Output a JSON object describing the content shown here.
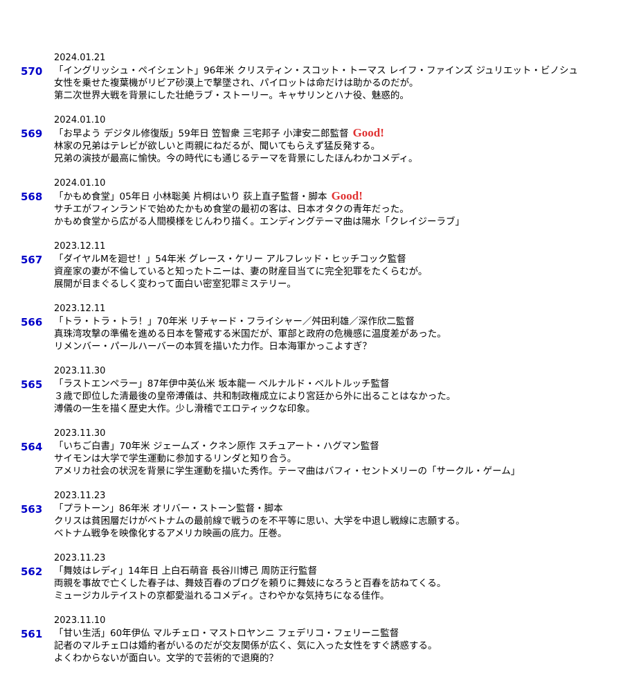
{
  "entries": [
    {
      "date": "2024.01.21",
      "number": "570",
      "title": "「イングリッシュ・ペイシェント」96年米 クリスティン・スコット・トーマス レイフ・ファインズ ジュリエット・ビノシュ",
      "lines": [
        "女性を乗せた複葉機がリビア砂漠上で撃墜され、パイロットは命だけは助かるのだが。",
        "第二次世界大戦を背景にした壮絶ラブ・ストーリー。キャサリンとハナ役、魅惑的。"
      ]
    },
    {
      "date": "2024.01.10",
      "number": "569",
      "title": "「お早よう デジタル修復版」59年日 笠智衆 三宅邦子 小津安二郎監督",
      "badge": "Good!",
      "lines": [
        "林家の兄弟はテレビが欲しいと両親にねだるが、聞いてもらえず猛反発する。",
        "兄弟の演技が最高に愉快。今の時代にも通じるテーマを背景にしたほんわかコメディ。"
      ]
    },
    {
      "date": "2024.01.10",
      "number": "568",
      "title": "「かもめ食堂」05年日 小林聡美 片桐はいり 荻上直子監督・脚本",
      "badge": "Good!",
      "lines": [
        "サチエがフィンランドで始めたかもめ食堂の最初の客は、日本オタクの青年だった。",
        "かもめ食堂から広がる人間模様をじんわり描く。エンディングテーマ曲は陽水「クレイジーラブ」"
      ]
    },
    {
      "date": "2023.12.11",
      "number": "567",
      "title": "「ダイヤルMを廻せ！」54年米 グレース・ケリー アルフレッド・ヒッチコック監督",
      "lines": [
        "資産家の妻が不倫していると知ったトニーは、妻の財産目当てに完全犯罪をたくらむが。",
        "展開が目まぐるしく変わって面白い密室犯罪ミステリー。"
      ]
    },
    {
      "date": "2023.12.11",
      "number": "566",
      "title": "「トラ・トラ・トラ！」70年米 リチャード・フライシャー／舛田利雄／深作欣二監督",
      "lines": [
        "真珠湾攻撃の準備を進める日本を警戒する米国だが、軍部と政府の危機感に温度差があった。",
        "リメンバー・パールハーバーの本質を描いた力作。日本海軍かっこよすぎ？"
      ]
    },
    {
      "date": "2023.11.30",
      "number": "565",
      "title": "「ラストエンペラー」87年伊中英仏米 坂本龍一 ベルナルド・ベルトルッチ監督",
      "lines": [
        "３歳で即位した清最後の皇帝溥儀は、共和制政権成立により宮廷から外に出ることはなかった。",
        "溥儀の一生を描く歴史大作。少し滑稽でエロティックな印象。"
      ]
    },
    {
      "date": "2023.11.30",
      "number": "564",
      "title": "「いちご白書」70年米 ジェームズ・クネン原作 スチュアート・ハグマン監督",
      "lines": [
        "サイモンは大学で学生運動に参加するリンダと知り合う。",
        "アメリカ社会の状況を背景に学生運動を描いた秀作。テーマ曲はバフィ・セントメリーの「サークル・ゲーム」"
      ]
    },
    {
      "date": "2023.11.23",
      "number": "563",
      "title": "「プラトーン」86年米 オリバー・ストーン監督・脚本",
      "lines": [
        "クリスは貧困層だけがベトナムの最前線で戦うのを不平等に思い、大学を中退し戦線に志願する。",
        "ベトナム戦争を映像化するアメリカ映画の底力。圧巻。"
      ]
    },
    {
      "date": "2023.11.23",
      "number": "562",
      "title": "「舞妓はレディ」14年日 上白石萌音 長谷川博己 周防正行監督",
      "lines": [
        "両親を事故で亡くした春子は、舞妓百春のブログを頼りに舞妓になろうと百春を訪ねてくる。",
        "ミュージカルテイストの京都愛溢れるコメディ。さわやかな気持ちになる佳作。"
      ]
    },
    {
      "date": "2023.11.10",
      "number": "561",
      "title": "「甘い生活」60年伊仏 マルチェロ・マストロヤンニ フェデリコ・フェリーニ監督",
      "lines": [
        "記者のマルチェロは婚約者がいるのだが交友関係が広く、気に入った女性をすぐ誘惑する。",
        "よくわからないが面白い。文学的で芸術的で退廃的？"
      ]
    }
  ]
}
